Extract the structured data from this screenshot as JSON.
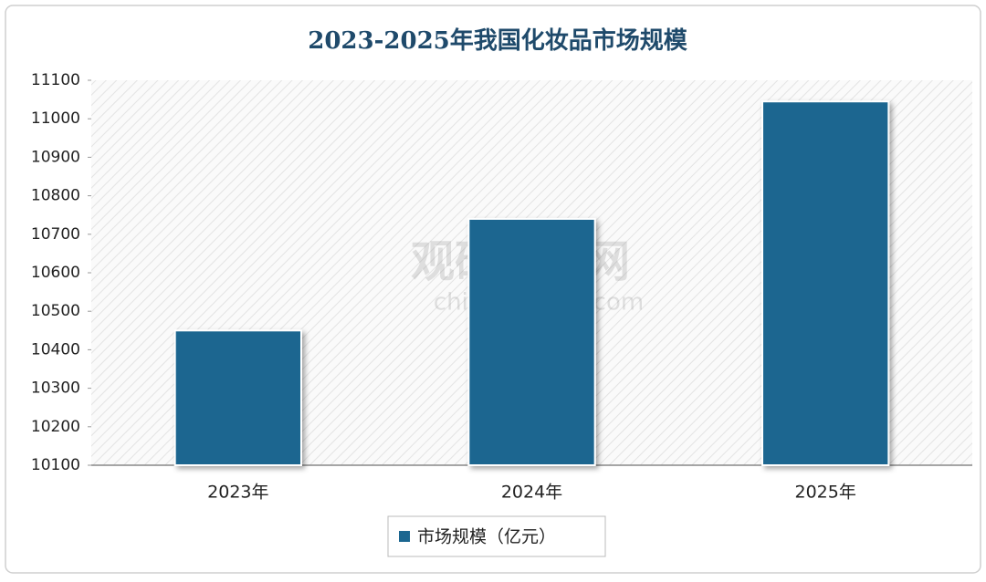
{
  "chart_data": {
    "type": "bar",
    "title": "2023-2025年我国化妆品市场规模",
    "categories": [
      "2023年",
      "2024年",
      "2025年"
    ],
    "series": [
      {
        "name": "市场规模（亿元）",
        "color": "#1b6690",
        "values": [
          10450,
          10740,
          11045
        ]
      }
    ],
    "ylim": [
      10100,
      11100
    ],
    "yticks": [
      10100,
      10200,
      10300,
      10400,
      10500,
      10600,
      10700,
      10800,
      10900,
      11000,
      11100
    ],
    "watermark": [
      "观研报告网",
      "chinabaogao.com"
    ]
  }
}
